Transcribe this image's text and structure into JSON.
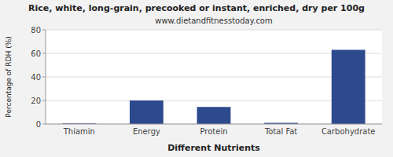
{
  "chart_data": {
    "type": "bar",
    "title": "Rice, white, long-grain, precooked or instant, enriched, dry per 100g",
    "subtitle": "www.dietandfitnesstoday.com",
    "xlabel": "Different Nutrients",
    "ylabel": "Percentage of RDH (%)",
    "categories": [
      "Thiamin",
      "Energy",
      "Protein",
      "Total Fat",
      "Carbohydrate"
    ],
    "values": [
      0.5,
      20,
      14.5,
      1.0,
      63
    ],
    "color": "#2e4a8e",
    "ylim": [
      0,
      80
    ],
    "yticks": [
      0,
      20,
      40,
      60,
      80
    ],
    "grid": true
  }
}
